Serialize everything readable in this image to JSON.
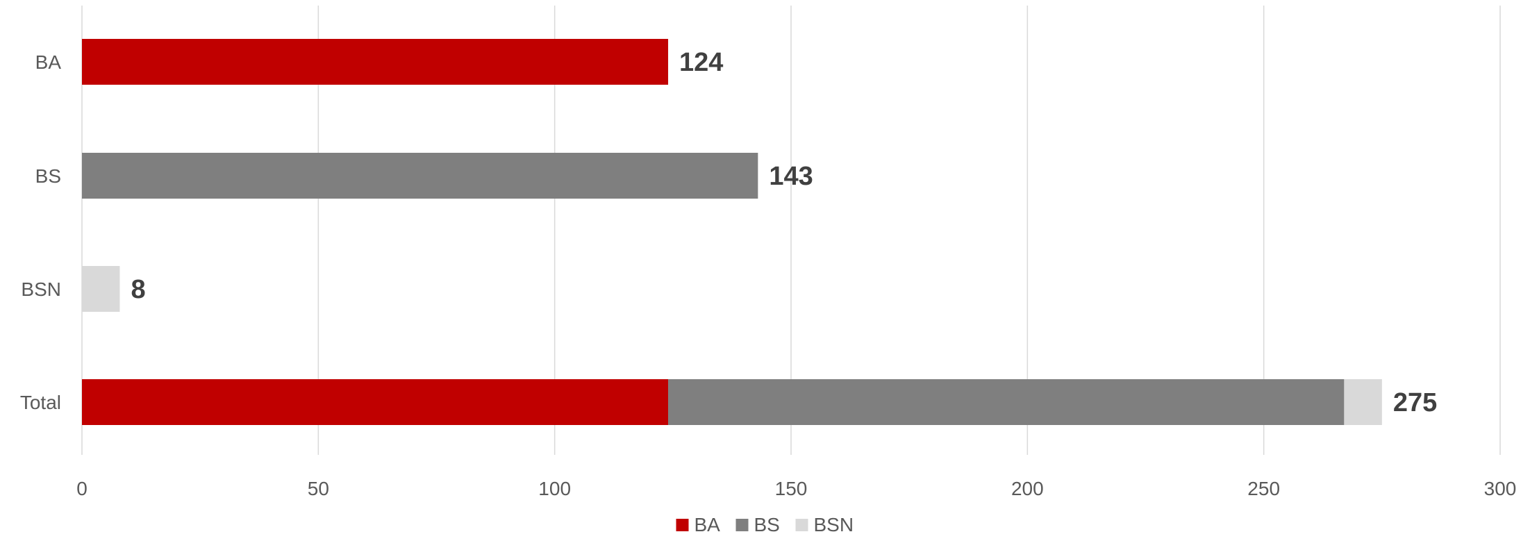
{
  "chart_data": {
    "type": "bar",
    "orientation": "horizontal",
    "stacked": true,
    "categories": [
      "BA",
      "BS",
      "BSN",
      "Total"
    ],
    "series": [
      {
        "name": "BA",
        "color": "#c00000",
        "values": [
          124,
          0,
          0,
          124
        ]
      },
      {
        "name": "BS",
        "color": "#7f7f7f",
        "values": [
          0,
          143,
          0,
          143
        ]
      },
      {
        "name": "BSN",
        "color": "#d9d9d9",
        "values": [
          0,
          0,
          8,
          8
        ]
      }
    ],
    "data_labels": [
      "124",
      "143",
      "8",
      "275"
    ],
    "xlim": [
      0,
      300
    ],
    "x_ticks": [
      "0",
      "50",
      "100",
      "150",
      "200",
      "250",
      "300"
    ],
    "grid": "vertical",
    "legend_position": "bottom",
    "title": "",
    "xlabel": "",
    "ylabel": ""
  }
}
